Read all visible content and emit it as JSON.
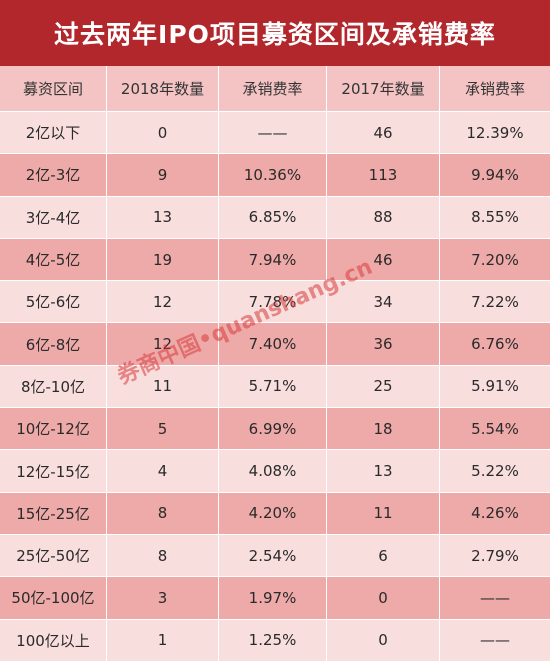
{
  "title": "过去两年IPO项目募资区间及承销费率",
  "columns": [
    "募资区间",
    "2018年数量",
    "承销费率",
    "2017年数量",
    "承销费率"
  ],
  "rows": [
    [
      "2亿以下",
      "0",
      "——",
      "46",
      "12.39%"
    ],
    [
      "2亿-3亿",
      "9",
      "10.36%",
      "113",
      "9.94%"
    ],
    [
      "3亿-4亿",
      "13",
      "6.85%",
      "88",
      "8.55%"
    ],
    [
      "4亿-5亿",
      "19",
      "7.94%",
      "46",
      "7.20%"
    ],
    [
      "5亿-6亿",
      "12",
      "7.78%",
      "34",
      "7.22%"
    ],
    [
      "6亿-8亿",
      "12",
      "7.40%",
      "36",
      "6.76%"
    ],
    [
      "8亿-10亿",
      "11",
      "5.71%",
      "25",
      "5.91%"
    ],
    [
      "10亿-12亿",
      "5",
      "6.99%",
      "18",
      "5.54%"
    ],
    [
      "12亿-15亿",
      "4",
      "4.08%",
      "13",
      "5.22%"
    ],
    [
      "15亿-25亿",
      "8",
      "4.20%",
      "11",
      "4.26%"
    ],
    [
      "25亿-50亿",
      "8",
      "2.54%",
      "6",
      "2.79%"
    ],
    [
      "50亿-100亿",
      "3",
      "1.97%",
      "0",
      "——"
    ],
    [
      "100亿以上",
      "1",
      "1.25%",
      "0",
      "——"
    ]
  ],
  "watermark": "券商中国•quanshang.cn",
  "colors": {
    "title_bg": "#b1272c",
    "header_bg": "#f4c4c4",
    "row_light": "#f9dede",
    "row_dark": "#eea9a9"
  }
}
